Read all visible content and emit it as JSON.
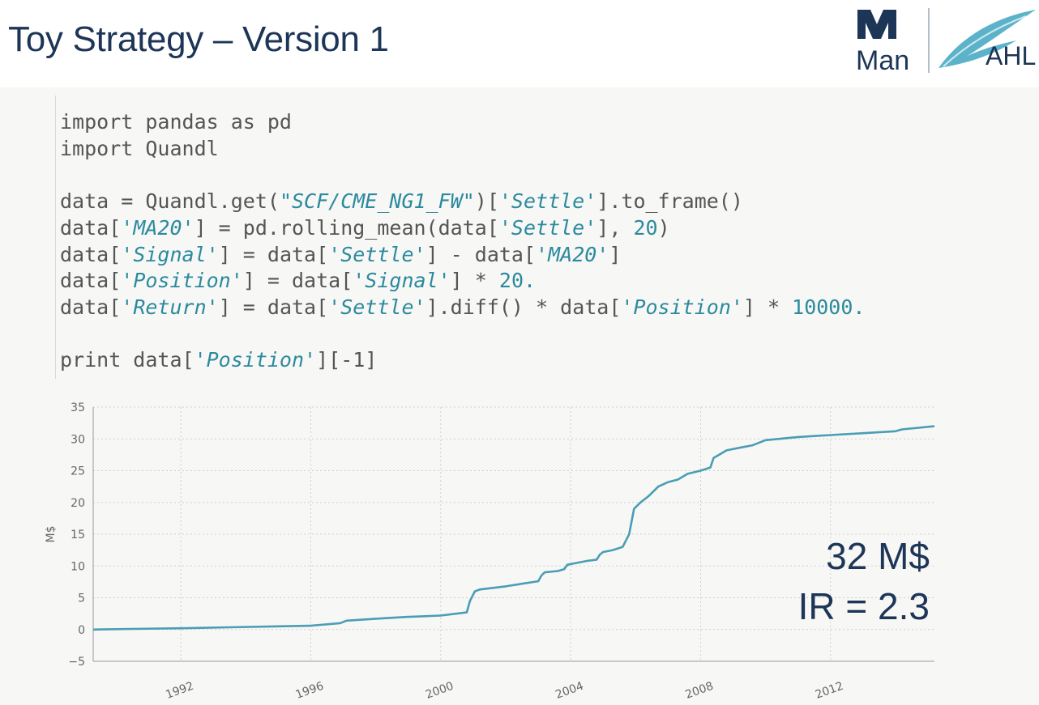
{
  "header": {
    "title": "Toy Strategy – Version 1",
    "logo_left_text": "Man",
    "logo_right_text": "AHL"
  },
  "code": {
    "lines": [
      [
        {
          "t": "import pandas as pd",
          "k": "p"
        }
      ],
      [
        {
          "t": "import Quandl",
          "k": "p"
        }
      ],
      [],
      [
        {
          "t": "data = Quandl.get(",
          "k": "p"
        },
        {
          "t": "\"SCF/CME_NG1_FW\"",
          "k": "s"
        },
        {
          "t": ")[",
          "k": "p"
        },
        {
          "t": "'Settle'",
          "k": "s"
        },
        {
          "t": "].to_frame()",
          "k": "p"
        }
      ],
      [
        {
          "t": "data[",
          "k": "p"
        },
        {
          "t": "'MA20'",
          "k": "s"
        },
        {
          "t": "] = pd.rolling_mean(data[",
          "k": "p"
        },
        {
          "t": "'Settle'",
          "k": "s"
        },
        {
          "t": "], ",
          "k": "p"
        },
        {
          "t": "20",
          "k": "n"
        },
        {
          "t": ")",
          "k": "p"
        }
      ],
      [
        {
          "t": "data[",
          "k": "p"
        },
        {
          "t": "'Signal'",
          "k": "s"
        },
        {
          "t": "] = data[",
          "k": "p"
        },
        {
          "t": "'Settle'",
          "k": "s"
        },
        {
          "t": "] - data[",
          "k": "p"
        },
        {
          "t": "'MA20'",
          "k": "s"
        },
        {
          "t": "]",
          "k": "p"
        }
      ],
      [
        {
          "t": "data[",
          "k": "p"
        },
        {
          "t": "'Position'",
          "k": "s"
        },
        {
          "t": "] = data[",
          "k": "p"
        },
        {
          "t": "'Signal'",
          "k": "s"
        },
        {
          "t": "] * ",
          "k": "p"
        },
        {
          "t": "20.",
          "k": "n"
        }
      ],
      [
        {
          "t": "data[",
          "k": "p"
        },
        {
          "t": "'Return'",
          "k": "s"
        },
        {
          "t": "] = data[",
          "k": "p"
        },
        {
          "t": "'Settle'",
          "k": "s"
        },
        {
          "t": "].diff() * data[",
          "k": "p"
        },
        {
          "t": "'Position'",
          "k": "s"
        },
        {
          "t": "] * ",
          "k": "p"
        },
        {
          "t": "10000.",
          "k": "n"
        }
      ],
      [],
      [
        {
          "t": "print data[",
          "k": "p"
        },
        {
          "t": "'Position'",
          "k": "s"
        },
        {
          "t": "][-1]",
          "k": "p"
        }
      ]
    ]
  },
  "overlay": {
    "value_text": "32 M$",
    "ir_text": "IR = 2.3"
  },
  "colors": {
    "line": "#4a9db5",
    "title": "#1d3557",
    "grid": "#cfcfcf",
    "axis_text": "#666666"
  },
  "chart_data": {
    "type": "line",
    "ylabel": "M$",
    "xlabel": "",
    "ylim": [
      -5,
      35
    ],
    "xlim": [
      1989.3,
      2015.2
    ],
    "yticks": [
      -5,
      0,
      5,
      10,
      15,
      20,
      25,
      30,
      35
    ],
    "xticks": [
      1992,
      1996,
      2000,
      2004,
      2008,
      2012
    ],
    "grid": true,
    "series": [
      {
        "x": [
          1989.3,
          1990.5,
          1992,
          1993.5,
          1995,
          1996,
          1996.9,
          1997.1,
          1998,
          1999,
          2000,
          2000.8,
          2000.9,
          2001.05,
          2001.2,
          2002,
          2002.5,
          2003,
          2003.1,
          2003.2,
          2003.6,
          2003.8,
          2003.9,
          2004.1,
          2004.5,
          2004.8,
          2004.9,
          2005,
          2005.3,
          2005.6,
          2005.8,
          2005.95,
          2006.15,
          2006.4,
          2006.7,
          2007,
          2007.3,
          2007.6,
          2008,
          2008.3,
          2008.4,
          2008.6,
          2008.8,
          2009.2,
          2009.6,
          2010,
          2011,
          2012,
          2013,
          2014,
          2014.2,
          2015,
          2015.2
        ],
        "y": [
          0,
          0.1,
          0.2,
          0.35,
          0.5,
          0.6,
          1.0,
          1.4,
          1.7,
          2.0,
          2.2,
          2.7,
          4.5,
          6.0,
          6.3,
          6.8,
          7.2,
          7.6,
          8.5,
          9.0,
          9.2,
          9.5,
          10.2,
          10.4,
          10.8,
          11.0,
          11.8,
          12.2,
          12.5,
          13.0,
          15.0,
          19.0,
          20.0,
          21.0,
          22.5,
          23.2,
          23.6,
          24.5,
          25.0,
          25.5,
          27.0,
          27.6,
          28.2,
          28.6,
          29.0,
          29.8,
          30.3,
          30.6,
          30.9,
          31.2,
          31.5,
          31.9,
          32.0
        ]
      }
    ]
  }
}
